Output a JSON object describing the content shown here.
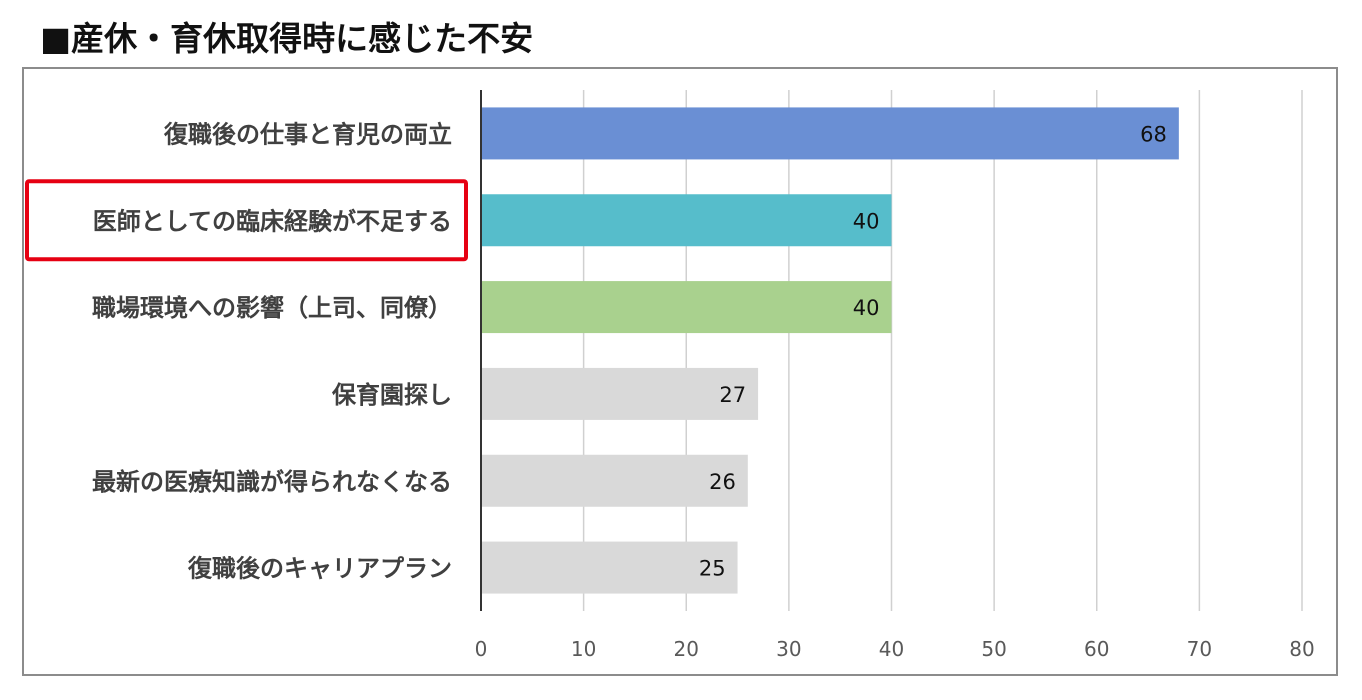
{
  "title": "■産休・育休取得時に感じた不安",
  "chart_data": {
    "type": "bar",
    "orientation": "horizontal",
    "title": "■産休・育休取得時に感じた不安",
    "categories": [
      "復職後の仕事と育児の両立",
      "医師としての臨床経験が不足する",
      "職場環境への影響（上司、同僚）",
      "保育園探し",
      "最新の医療知識が得られなくなる",
      "復職後のキャリアプラン"
    ],
    "values": [
      68,
      40,
      40,
      27,
      26,
      25
    ],
    "bar_colors": [
      "#6a8fd4",
      "#56bdcb",
      "#a9d18e",
      "#d9d9d9",
      "#d9d9d9",
      "#d9d9d9"
    ],
    "highlighted_category": "医師としての臨床経験が不足する",
    "highlight_color": "#e60012",
    "xlim": [
      0,
      80
    ],
    "xticks": [
      "0",
      "10",
      "20",
      "30",
      "40",
      "50",
      "60",
      "70",
      "80"
    ],
    "grid": true,
    "data_labels": true,
    "xlabel": "",
    "ylabel": ""
  }
}
